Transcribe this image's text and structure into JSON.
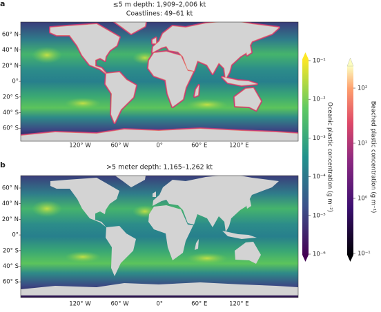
{
  "panels": [
    {
      "letter": "a",
      "title_lines": [
        "≤5 m depth: 1,909–2,006 kt",
        "Coastlines: 49–61 kt"
      ],
      "y_labels": [
        "60° N",
        "40° N",
        "20° N",
        "0°",
        "20° S",
        "40° S",
        "60° S"
      ],
      "x_labels": [
        "120° W",
        "60° W",
        "0°",
        "60° E",
        "120° E"
      ]
    },
    {
      "letter": "b",
      "title_lines": [
        ">5 meter depth: 1,165–1,262 kt"
      ],
      "y_labels": [
        "60° N",
        "40° N",
        "20° N",
        "0°",
        "20° S",
        "40° S",
        "60° S"
      ],
      "x_labels": [
        "120° W",
        "60° W",
        "0°",
        "60° E",
        "120° E"
      ]
    }
  ],
  "colorbars": [
    {
      "label": "Oceanic plastic concentration (g m⁻²)",
      "tick_labels": [
        "10⁻¹",
        "10⁻²",
        "10⁻³",
        "10⁻⁴",
        "10⁻⁵",
        "10⁻⁶"
      ]
    },
    {
      "label": "Beached plastic concentration (g m⁻¹)",
      "tick_labels": [
        "10²",
        "10¹",
        "10⁰",
        "10⁻¹"
      ]
    }
  ]
}
